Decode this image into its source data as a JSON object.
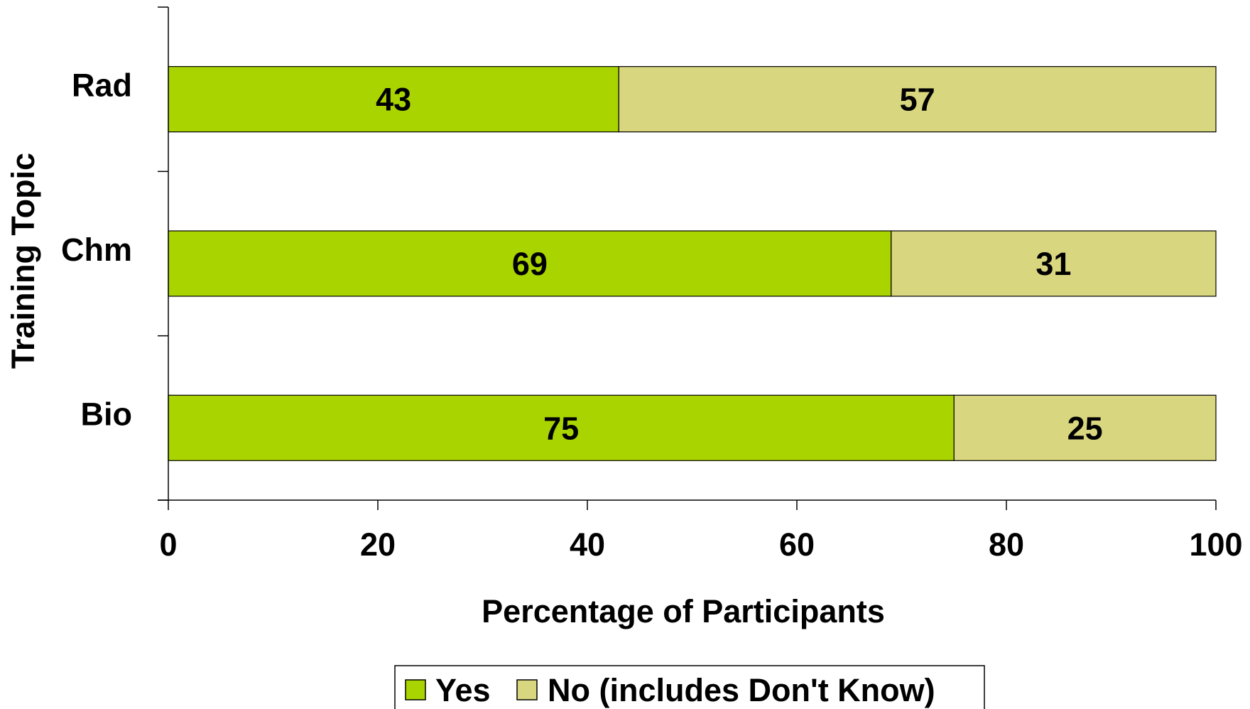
{
  "chart_data": {
    "type": "bar",
    "orientation": "horizontal",
    "stacked": true,
    "categories": [
      "Rad",
      "Chm",
      "Bio"
    ],
    "series": [
      {
        "name": "Yes",
        "values": [
          43,
          69,
          75
        ],
        "color": "#a9d400"
      },
      {
        "name": "No (includes Don't Know)",
        "values": [
          57,
          31,
          25
        ],
        "color": "#d8d67f"
      }
    ],
    "xlabel": "Percentage of Participants",
    "ylabel": "Training Topic",
    "xlim": [
      0,
      100
    ],
    "xticks": [
      "0",
      "20",
      "40",
      "60",
      "80",
      "100"
    ],
    "grid": false,
    "legend_position": "bottom"
  }
}
